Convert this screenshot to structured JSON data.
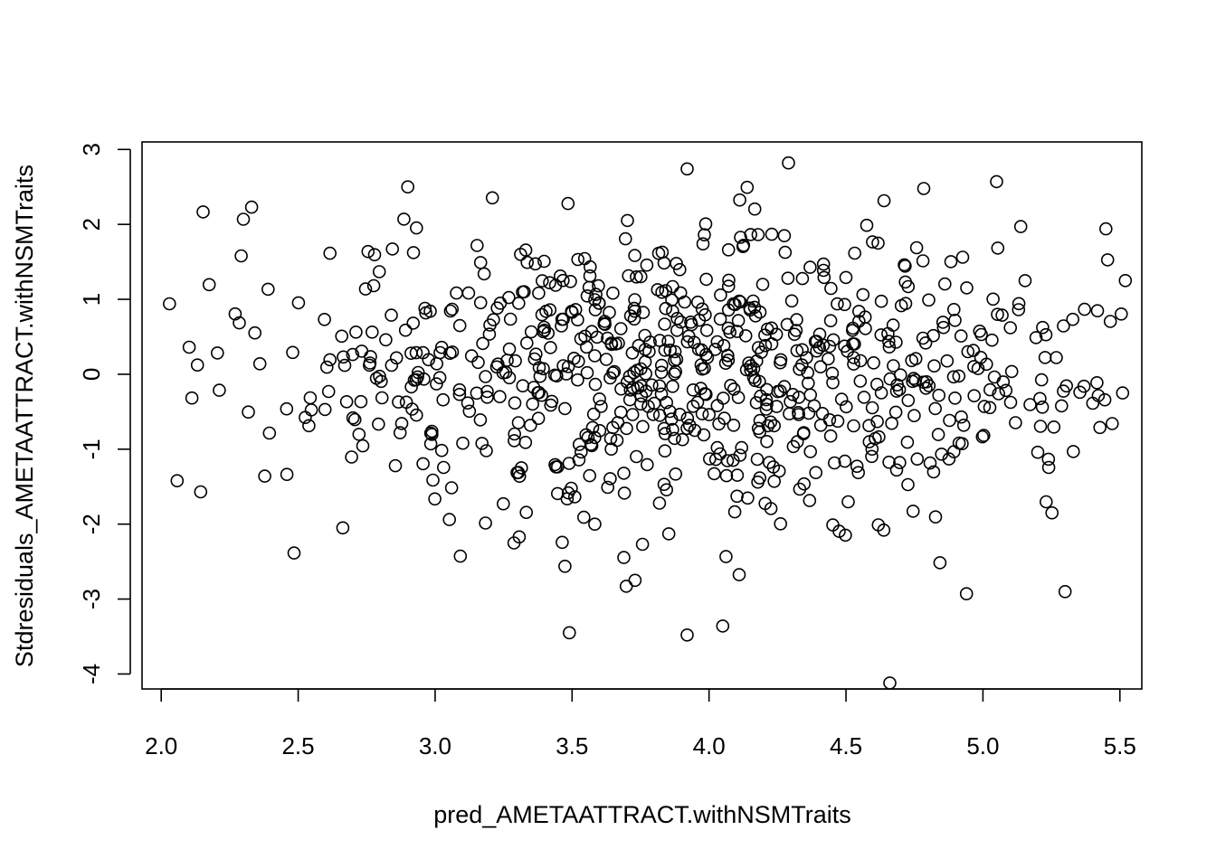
{
  "chart_data": {
    "type": "scatter",
    "title": "",
    "xlabel": "pred_AMETAATTRACT.withNSMTraits",
    "ylabel": "Stdresiduals_AMETAATTRACT.withNSMTraits",
    "xlim": [
      1.93,
      5.58
    ],
    "ylim": [
      -4.2,
      3.1
    ],
    "xticks": [
      "2.0",
      "2.5",
      "3.0",
      "3.5",
      "4.0",
      "4.5",
      "5.0",
      "5.5"
    ],
    "yticks": [
      "3",
      "2",
      "1",
      "0",
      "-1",
      "-2",
      "-3",
      "-4"
    ],
    "grid": false,
    "legend": "none",
    "point_color": "#000000",
    "points": []
  }
}
